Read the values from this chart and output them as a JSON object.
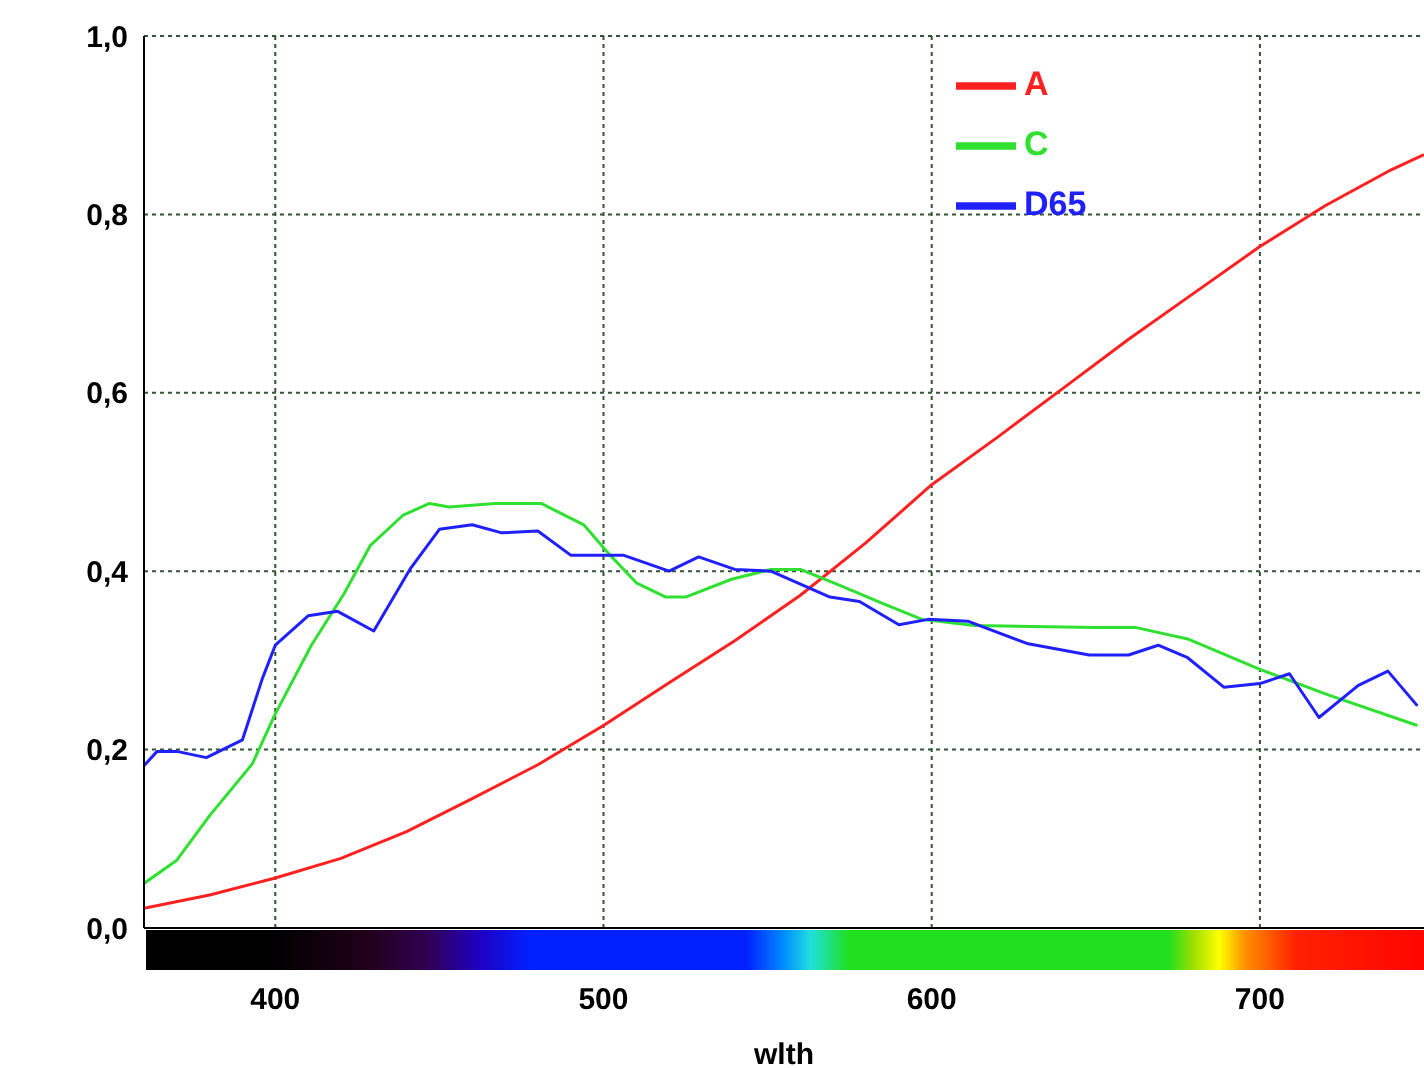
{
  "chart_data": {
    "type": "line",
    "xlabel": "wlth",
    "xlim": [
      360,
      750
    ],
    "xticks": [
      400,
      500,
      600,
      700
    ],
    "ylim": [
      0,
      1
    ],
    "yticks": [
      {
        "value": 0,
        "label": "0,0"
      },
      {
        "value": 0.2,
        "label": "0,2"
      },
      {
        "value": 0.4,
        "label": "0,4"
      },
      {
        "value": 0.6,
        "label": "0,6"
      },
      {
        "value": 0.8,
        "label": "0,8"
      },
      {
        "value": 1,
        "label": "1,0"
      }
    ],
    "grid": true,
    "legend": "top right",
    "marker": "none",
    "line_style": "solid",
    "series": [
      {
        "name": "A",
        "color": "#ff2020",
        "x": [
          360,
          380,
          400,
          420,
          440,
          460,
          480,
          500,
          520,
          540,
          560,
          580,
          600,
          620,
          640,
          660,
          680,
          700,
          720,
          740,
          750
        ],
        "values": [
          0.022,
          0.037,
          0.056,
          0.078,
          0.108,
          0.145,
          0.183,
          0.227,
          0.275,
          0.322,
          0.373,
          0.432,
          0.497,
          0.55,
          0.605,
          0.66,
          0.712,
          0.764,
          0.81,
          0.85,
          0.867
        ]
      },
      {
        "name": "C",
        "color": "#30e030",
        "x": [
          360,
          370,
          380,
          393,
          400,
          411,
          421,
          429,
          439,
          447,
          453,
          467,
          481,
          494,
          502,
          510,
          519,
          525,
          539,
          551,
          560,
          572,
          585,
          597,
          613,
          650,
          662,
          678,
          700,
          721,
          748
        ],
        "values": [
          0.05,
          0.076,
          0.126,
          0.184,
          0.24,
          0.317,
          0.375,
          0.429,
          0.463,
          0.476,
          0.472,
          0.476,
          0.476,
          0.452,
          0.418,
          0.387,
          0.371,
          0.371,
          0.391,
          0.402,
          0.402,
          0.384,
          0.364,
          0.346,
          0.339,
          0.337,
          0.337,
          0.324,
          0.29,
          0.261,
          0.227
        ]
      },
      {
        "name": "D65",
        "color": "#2020ff",
        "x": [
          360,
          364,
          370,
          379,
          390,
          396,
          400,
          410,
          419,
          430,
          441,
          450,
          460,
          469,
          480,
          490,
          506,
          520,
          529,
          540,
          551,
          569,
          578,
          590,
          599,
          611,
          629,
          648,
          660,
          669,
          678,
          689,
          700,
          709,
          718,
          730,
          739,
          748
        ],
        "values": [
          0.182,
          0.198,
          0.198,
          0.191,
          0.211,
          0.279,
          0.317,
          0.35,
          0.355,
          0.333,
          0.402,
          0.447,
          0.452,
          0.443,
          0.445,
          0.418,
          0.418,
          0.4,
          0.416,
          0.402,
          0.4,
          0.371,
          0.366,
          0.34,
          0.346,
          0.344,
          0.319,
          0.306,
          0.306,
          0.317,
          0.303,
          0.27,
          0.274,
          0.285,
          0.236,
          0.272,
          0.288,
          0.249
        ]
      }
    ]
  }
}
